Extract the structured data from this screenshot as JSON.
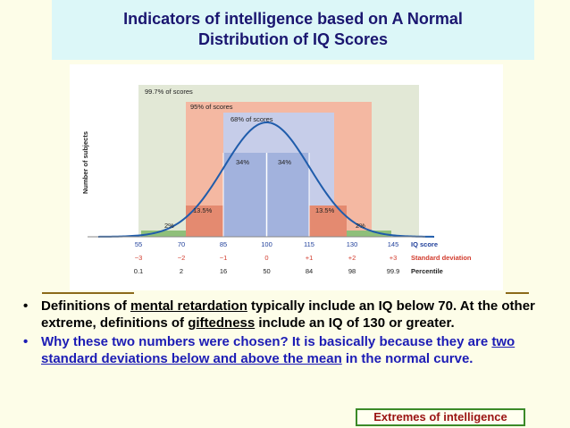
{
  "title": {
    "line1": "Indicators of intelligence based on A Normal",
    "line2": "Distribution of IQ Scores"
  },
  "colors": {
    "title_bg": "#dcf7f8",
    "title_text": "#1a1670",
    "band_99_7": "#e2e8d6",
    "band_95": "#f4b8a2",
    "band_68": "#c6cde9",
    "band_34": "#a2b2dd",
    "band_13_5": "#e48a70",
    "band_2": "#8fbf7a",
    "curve": "#1f5cab",
    "sd_row": "#d23c2e",
    "bullet2": "#1c1cb5",
    "caption_text": "#9a1313",
    "caption_border": "#3b8a28"
  },
  "figure": {
    "y_axis_label": "Number of subjects",
    "band_labels": {
      "pct_99_7": "99.7% of scores",
      "pct_95": "95% of scores",
      "pct_68": "68% of scores"
    },
    "region_labels": {
      "left_2": "2%",
      "left_13_5": "13.5%",
      "left_34": "34%",
      "right_34": "34%",
      "right_13_5": "13.5%",
      "right_2": "2%"
    },
    "iq_scores": [
      "55",
      "70",
      "85",
      "100",
      "115",
      "130",
      "145"
    ],
    "sd_values": [
      "−3",
      "−2",
      "−1",
      "0",
      "+1",
      "+2",
      "+3"
    ],
    "percentiles": [
      "0.1",
      "2",
      "16",
      "50",
      "84",
      "98",
      "99.9"
    ],
    "row_labels": {
      "iq": "IQ score",
      "sd": "Standard deviation",
      "percentile": "Percentile"
    }
  },
  "bullets": {
    "b1_pre": "Definitions of ",
    "b1_link1": "mental retardation",
    "b1_mid": " typically include an IQ below 70. At the other extreme, definitions of ",
    "b1_link2": "giftedness",
    "b1_post": " include an IQ of 130 or greater.",
    "b2_pre": "Why these two numbers were chosen? It is basically because they are ",
    "b2_link": "two standard deviations below and above the mean",
    "b2_post": " in the normal curve."
  },
  "caption": "Extremes of intelligence"
}
